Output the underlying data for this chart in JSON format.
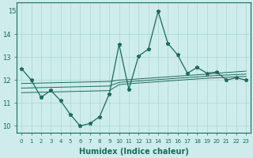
{
  "x": [
    0,
    1,
    2,
    3,
    4,
    5,
    6,
    7,
    8,
    9,
    10,
    11,
    12,
    13,
    14,
    15,
    16,
    17,
    18,
    19,
    20,
    21,
    22,
    23
  ],
  "y_main": [
    12.5,
    12.0,
    11.25,
    11.55,
    11.1,
    10.5,
    10.0,
    10.1,
    10.4,
    11.4,
    13.55,
    11.6,
    13.05,
    13.35,
    15.0,
    13.6,
    13.1,
    12.3,
    12.55,
    12.3,
    12.35,
    12.0,
    12.1,
    12.0
  ],
  "y_trend_lo": [
    11.45,
    11.46,
    11.47,
    11.48,
    11.49,
    11.5,
    11.51,
    11.52,
    11.53,
    11.54,
    11.8,
    11.84,
    11.87,
    11.9,
    11.93,
    11.96,
    11.99,
    12.02,
    12.05,
    12.08,
    12.1,
    12.12,
    12.14,
    12.16
  ],
  "y_trend_mid": [
    11.65,
    11.66,
    11.67,
    11.68,
    11.69,
    11.7,
    11.71,
    11.72,
    11.73,
    11.74,
    11.9,
    11.93,
    11.96,
    11.99,
    12.02,
    12.05,
    12.08,
    12.11,
    12.14,
    12.17,
    12.2,
    12.22,
    12.24,
    12.26
  ],
  "y_trend_hi": [
    11.85,
    11.86,
    11.87,
    11.88,
    11.89,
    11.9,
    11.91,
    11.92,
    11.93,
    11.94,
    12.0,
    12.02,
    12.05,
    12.08,
    12.11,
    12.14,
    12.17,
    12.2,
    12.23,
    12.26,
    12.3,
    12.33,
    12.36,
    12.39
  ],
  "line_color": "#1a6b5a",
  "bg_color": "#cdecea",
  "grid_color": "#a8d8d4",
  "xlabel": "Humidex (Indice chaleur)",
  "ylim": [
    9.7,
    15.4
  ],
  "xlim": [
    -0.5,
    23.5
  ],
  "yticks": [
    10,
    11,
    12,
    13,
    14
  ],
  "ytop_label": "15"
}
